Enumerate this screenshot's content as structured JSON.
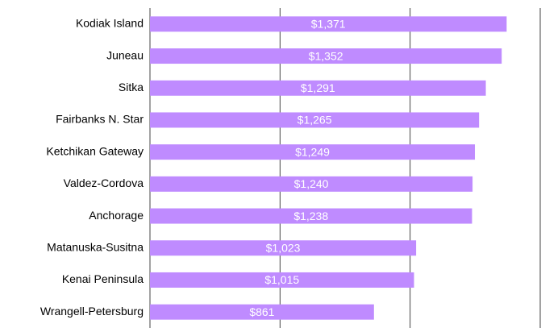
{
  "chart_data": {
    "type": "bar",
    "orientation": "horizontal",
    "categories": [
      "Kodiak Island",
      "Juneau",
      "Sitka",
      "Fairbanks N. Star",
      "Ketchikan Gateway",
      "Valdez-Cordova",
      "Anchorage",
      "Matanuska-Susitna",
      "Kenai Peninsula",
      "Wrangell-Petersburg"
    ],
    "values": [
      1371,
      1352,
      1291,
      1265,
      1249,
      1240,
      1238,
      1023,
      1015,
      861
    ],
    "value_labels": [
      "$1,371",
      "$1,352",
      "$1,291",
      "$1,265",
      "$1,249",
      "$1,240",
      "$1,238",
      "$1,023",
      "$1,015",
      "$861"
    ],
    "color": "#bf8bff",
    "xlim": [
      0,
      1500
    ],
    "xticks": [
      0,
      500,
      1000,
      1500
    ],
    "grid": true
  }
}
